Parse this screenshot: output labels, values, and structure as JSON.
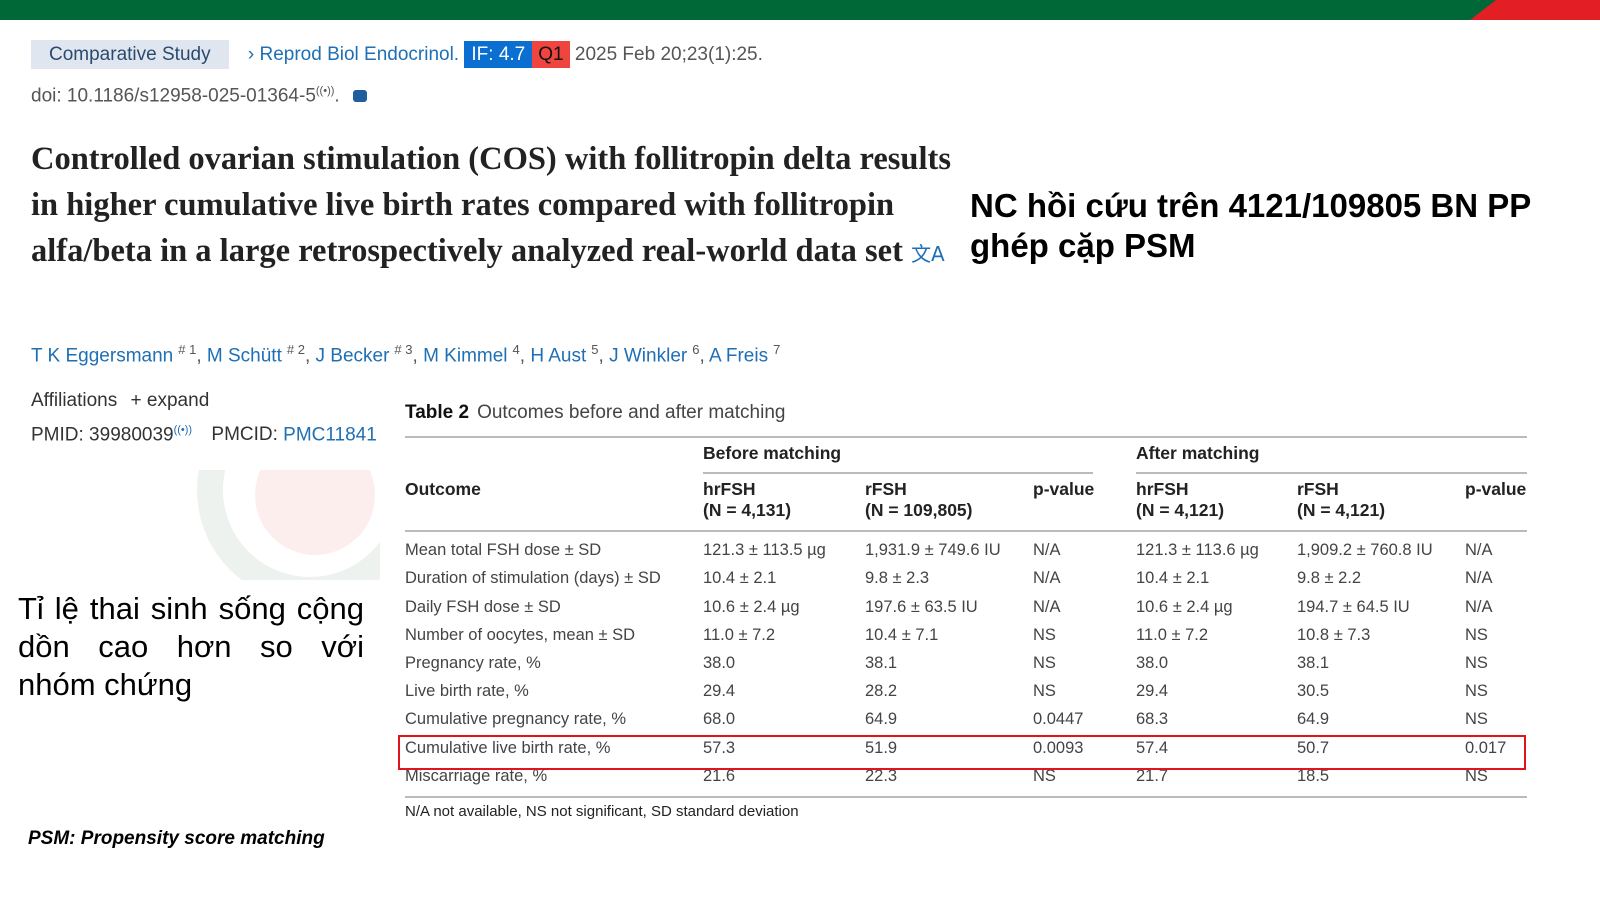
{
  "header": {
    "article_type": "Comparative Study",
    "journal": "Reprod Biol Endocrinol.",
    "impact_factor": "IF: 4.7",
    "quartile": "Q1",
    "date_citation": "2025 Feb 20;23(1):25.",
    "doi": "doi: 10.1186/s12958-025-01364-5",
    "doi_suffix": "."
  },
  "title": "Controlled ovarian stimulation (COS) with follitropin delta results in higher cumulative live birth rates compared with follitropin alfa/beta in a large retrospectively analyzed real-world data set",
  "side_note": "NC hồi cứu trên 4121/109805 BN PP ghép cặp PSM",
  "authors": [
    {
      "name": "T K Eggersmann",
      "sup": "# 1"
    },
    {
      "name": "M Schütt",
      "sup": "# 2"
    },
    {
      "name": "J Becker",
      "sup": "# 3"
    },
    {
      "name": "M Kimmel",
      "sup": "4"
    },
    {
      "name": "H Aust",
      "sup": "5"
    },
    {
      "name": "J Winkler",
      "sup": "6"
    },
    {
      "name": "A Freis",
      "sup": "7"
    }
  ],
  "affiliations": {
    "label": "Affiliations",
    "expand": "+ expand"
  },
  "ids": {
    "pmid_label": "PMID: 39980039",
    "pmcid_label": "PMCID:",
    "pmcid": "PMC11841"
  },
  "conclusion_vi": "Tỉ lệ thai sinh sống cộng dồn cao hơn so với nhóm chứng",
  "footnote_psm": "PSM: Propensity score matching",
  "table": {
    "label": "Table 2",
    "caption": "Outcomes before and after matching",
    "group_before": "Before matching",
    "group_after": "After matching",
    "col_outcome": "Outcome",
    "cols": [
      {
        "name": "hrFSH",
        "n": "(N = 4,131)"
      },
      {
        "name": "rFSH",
        "n": "(N = 109,805)"
      },
      {
        "name": "p-value",
        "n": ""
      },
      {
        "name": "hrFSH",
        "n": "(N = 4,121)"
      },
      {
        "name": "rFSH",
        "n": "(N = 4,121)"
      },
      {
        "name": "p-value",
        "n": ""
      }
    ],
    "rows": [
      [
        "Mean total FSH dose ± SD",
        "121.3 ± 113.5 µg",
        "1,931.9 ± 749.6 IU",
        "N/A",
        "121.3 ± 113.6 µg",
        "1,909.2 ± 760.8 IU",
        "N/A"
      ],
      [
        "Duration of stimulation (days) ± SD",
        "10.4 ± 2.1",
        "9.8 ± 2.3",
        "N/A",
        "10.4 ± 2.1",
        "9.8 ± 2.2",
        "N/A"
      ],
      [
        "Daily FSH dose ± SD",
        "10.6 ± 2.4 µg",
        "197.6 ± 63.5 IU",
        "N/A",
        "10.6 ± 2.4 µg",
        "194.7 ± 64.5 IU",
        "N/A"
      ],
      [
        "Number of oocytes, mean ± SD",
        "11.0 ± 7.2",
        "10.4 ± 7.1",
        "NS",
        "11.0 ± 7.2",
        "10.8 ± 7.3",
        "NS"
      ],
      [
        "Pregnancy rate, %",
        "38.0",
        "38.1",
        "NS",
        "38.0",
        "38.1",
        "NS"
      ],
      [
        "Live birth rate, %",
        "29.4",
        "28.2",
        "NS",
        "29.4",
        "30.5",
        "NS"
      ],
      [
        "Cumulative pregnancy rate, %",
        "68.0",
        "64.9",
        "0.0447",
        "68.3",
        "64.9",
        "NS"
      ],
      [
        "Cumulative live birth rate, %",
        "57.3",
        "51.9",
        "0.0093",
        "57.4",
        "50.7",
        "0.017"
      ],
      [
        "Miscarriage rate, %",
        "21.6",
        "22.3",
        "NS",
        "21.7",
        "18.5",
        "NS"
      ]
    ],
    "highlighted_row": "Cumulative live birth rate, %",
    "footnote": "N/A not available, NS not significant, SD standard deviation"
  },
  "colors": {
    "top_bar": "#006837",
    "top_accent": "#e31e24",
    "link": "#1f6fb4",
    "highlight": "#e0141e"
  }
}
